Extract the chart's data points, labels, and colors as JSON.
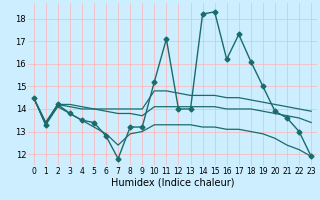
{
  "title": "",
  "xlabel": "Humidex (Indice chaleur)",
  "ylabel": "",
  "bg_color": "#cceeff",
  "plot_bg_color": "#cceeff",
  "grid_color": "#ffb3b3",
  "line_color": "#1a6b6b",
  "xlim": [
    -0.5,
    23.5
  ],
  "ylim": [
    11.5,
    18.7
  ],
  "yticks": [
    12,
    13,
    14,
    15,
    16,
    17,
    18
  ],
  "xticks": [
    0,
    1,
    2,
    3,
    4,
    5,
    6,
    7,
    8,
    9,
    10,
    11,
    12,
    13,
    14,
    15,
    16,
    17,
    18,
    19,
    20,
    21,
    22,
    23
  ],
  "series": [
    {
      "x": [
        0,
        1,
        2,
        3,
        4,
        5,
        6,
        7,
        8,
        9,
        10,
        11,
        12,
        13,
        14,
        15,
        16,
        17,
        18,
        19,
        20,
        21,
        22,
        23
      ],
      "y": [
        14.5,
        13.3,
        14.2,
        13.8,
        13.5,
        13.4,
        12.8,
        11.8,
        13.2,
        13.2,
        15.2,
        17.1,
        14.0,
        14.0,
        18.2,
        18.3,
        16.2,
        17.3,
        16.1,
        15.0,
        13.9,
        13.6,
        13.0,
        11.9
      ],
      "marker": "D",
      "markersize": 2.5,
      "linewidth": 1.0
    },
    {
      "x": [
        0,
        1,
        2,
        3,
        4,
        5,
        6,
        7,
        8,
        9,
        10,
        11,
        12,
        13,
        14,
        15,
        16,
        17,
        18,
        19,
        20,
        21,
        22,
        23
      ],
      "y": [
        14.5,
        13.4,
        14.2,
        14.2,
        14.1,
        14.0,
        14.0,
        14.0,
        14.0,
        14.0,
        14.8,
        14.8,
        14.7,
        14.6,
        14.6,
        14.6,
        14.5,
        14.5,
        14.4,
        14.3,
        14.2,
        14.1,
        14.0,
        13.9
      ],
      "marker": null,
      "markersize": 0,
      "linewidth": 0.9
    },
    {
      "x": [
        0,
        1,
        2,
        3,
        4,
        5,
        6,
        7,
        8,
        9,
        10,
        11,
        12,
        13,
        14,
        15,
        16,
        17,
        18,
        19,
        20,
        21,
        22,
        23
      ],
      "y": [
        14.5,
        13.4,
        14.2,
        14.1,
        14.0,
        14.0,
        13.9,
        13.8,
        13.8,
        13.7,
        14.1,
        14.1,
        14.1,
        14.1,
        14.1,
        14.1,
        14.0,
        14.0,
        14.0,
        13.9,
        13.8,
        13.7,
        13.6,
        13.4
      ],
      "marker": null,
      "markersize": 0,
      "linewidth": 0.9
    },
    {
      "x": [
        0,
        1,
        2,
        3,
        4,
        5,
        6,
        7,
        8,
        9,
        10,
        11,
        12,
        13,
        14,
        15,
        16,
        17,
        18,
        19,
        20,
        21,
        22,
        23
      ],
      "y": [
        14.5,
        13.3,
        14.1,
        13.8,
        13.5,
        13.2,
        12.9,
        12.4,
        12.9,
        13.0,
        13.3,
        13.3,
        13.3,
        13.3,
        13.2,
        13.2,
        13.1,
        13.1,
        13.0,
        12.9,
        12.7,
        12.4,
        12.2,
        11.9
      ],
      "marker": null,
      "markersize": 0,
      "linewidth": 0.9
    }
  ]
}
